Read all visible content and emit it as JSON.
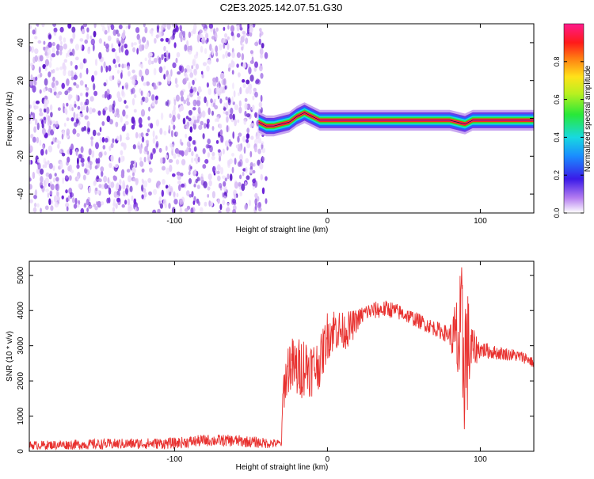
{
  "title": "C2E3.2025.142.07.51.G30",
  "colors": {
    "snr_line": "#e8312f",
    "purple_dark": "#6a1fd8",
    "purple_light": "#c9a8f0",
    "frame": "#000000"
  },
  "chart_data": [
    {
      "type": "heatmap",
      "title": "C2E3.2025.142.07.51.G30",
      "xlabel": "Height of straight line (km)",
      "ylabel": "Frequency (Hz)",
      "xlim": [
        -195,
        135
      ],
      "ylim": [
        -50,
        50
      ],
      "xticks": [
        -100,
        0,
        100
      ],
      "yticks": [
        -40,
        -20,
        0,
        20,
        40
      ],
      "noise_region_x": [
        -195,
        -40
      ],
      "signal_trace": {
        "x": [
          -45,
          -40,
          -35,
          -30,
          -25,
          -20,
          -15,
          -10,
          -5,
          0,
          10,
          20,
          30,
          40,
          50,
          60,
          70,
          80,
          85,
          90,
          95,
          100,
          110,
          120,
          135
        ],
        "y": [
          -2,
          -4,
          -4,
          -3,
          -2,
          1,
          3,
          1,
          -1,
          -1,
          -1,
          -1,
          -1,
          -1,
          -1,
          -1,
          -1,
          -1,
          -2,
          -3,
          -1,
          -1,
          -1,
          -1,
          -1
        ]
      },
      "colorbar": {
        "label": "Normalized spectral amplitude",
        "range": [
          0,
          1
        ],
        "ticks": [
          0.0,
          0.2,
          0.4,
          0.6,
          0.8
        ],
        "tick_labels": [
          "0.0",
          "0.2",
          "0.4",
          "0.6",
          "0.8"
        ],
        "colormap": "rainbow (white-purple-blue-cyan-green-yellow-red-magenta)"
      }
    },
    {
      "type": "line",
      "xlabel": "Height of straight line (km)",
      "ylabel": "SNR (10 * v/v)",
      "xlim": [
        -195,
        135
      ],
      "ylim": [
        0,
        5400
      ],
      "xticks": [
        -100,
        0,
        100
      ],
      "yticks": [
        0,
        1000,
        2000,
        3000,
        4000,
        5000
      ],
      "envelope": {
        "x": [
          -195,
          -150,
          -100,
          -80,
          -60,
          -40,
          -30,
          -29,
          -25,
          -20,
          -15,
          -10,
          -5,
          0,
          5,
          10,
          15,
          20,
          25,
          30,
          40,
          50,
          60,
          70,
          80,
          85,
          88,
          90,
          92,
          95,
          100,
          110,
          120,
          130,
          135
        ],
        "mean": [
          170,
          200,
          230,
          310,
          300,
          230,
          220,
          1700,
          2500,
          2300,
          2450,
          2350,
          2500,
          3300,
          3500,
          3400,
          3500,
          3750,
          3950,
          4000,
          4050,
          3900,
          3700,
          3500,
          3300,
          3100,
          2900,
          2800,
          2850,
          2900,
          2900,
          2800,
          2750,
          2650,
          2500
        ],
        "amplitude": [
          120,
          150,
          160,
          170,
          170,
          150,
          100,
          600,
          800,
          900,
          900,
          800,
          700,
          700,
          650,
          550,
          500,
          300,
          250,
          250,
          250,
          220,
          220,
          220,
          250,
          1500,
          2500,
          2400,
          1700,
          600,
          250,
          200,
          180,
          170,
          150
        ]
      }
    }
  ]
}
